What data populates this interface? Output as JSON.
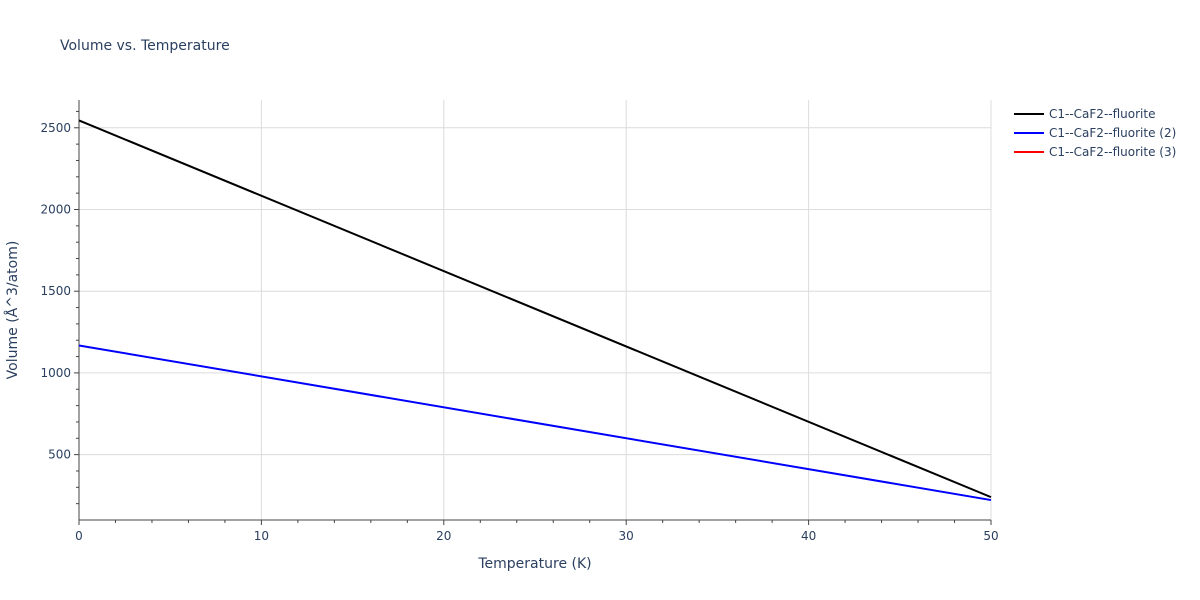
{
  "chart_data": {
    "type": "line",
    "title": "Volume vs. Temperature",
    "xlabel": "Temperature (K)",
    "ylabel": "Volume (Å^3/atom)",
    "xlim": [
      0,
      50
    ],
    "ylim": [
      100,
      2670
    ],
    "xticks": [
      0,
      10,
      20,
      30,
      40,
      50
    ],
    "yticks": [
      500,
      1000,
      1500,
      2000,
      2500
    ],
    "grid": true,
    "legend_position": "top-right",
    "series": [
      {
        "name": "C1--CaF2--fluorite",
        "color": "#000000",
        "x": [
          0,
          50
        ],
        "y": [
          2545,
          240
        ]
      },
      {
        "name": "C1--CaF2--fluorite (2)",
        "color": "#0000ff",
        "x": [
          0,
          50
        ],
        "y": [
          1168,
          222
        ]
      },
      {
        "name": "C1--CaF2--fluorite (3)",
        "color": "#ff0000",
        "x": [],
        "y": []
      }
    ]
  }
}
